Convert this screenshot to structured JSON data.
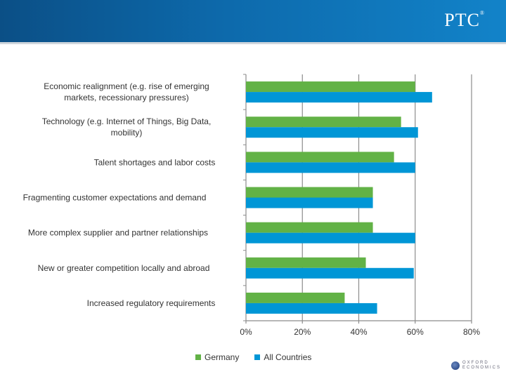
{
  "header": {
    "logo": "PTC",
    "logo_mark": "®"
  },
  "footer_logo": {
    "line1": "OXFORD",
    "line2": "ECONOMICS"
  },
  "chart_data": {
    "type": "bar",
    "orientation": "horizontal",
    "categories": [
      [
        "Economic realignment (e.g. rise of emerging",
        "markets, recessionary pressures)"
      ],
      [
        "Technology (e.g. Internet of Things, Big Data,",
        "mobility)"
      ],
      [
        "Talent shortages and labor costs"
      ],
      [
        "Fragmenting customer expectations and demand"
      ],
      [
        "More complex supplier and partner relationships"
      ],
      [
        "New or greater competition locally and abroad"
      ],
      [
        "Increased regulatory requirements"
      ]
    ],
    "series": [
      {
        "name": "Germany",
        "color": "#62b246",
        "values": [
          60,
          55,
          52.5,
          45,
          45,
          42.5,
          35
        ]
      },
      {
        "name": "All Countries",
        "color": "#0096d6",
        "values": [
          66,
          61,
          60,
          45,
          60,
          59.5,
          46.5
        ]
      }
    ],
    "xlim": [
      0,
      80
    ],
    "xticks": [
      "0%",
      "20%",
      "40%",
      "60%",
      "80%"
    ],
    "grid": true,
    "legend_position": "bottom"
  }
}
